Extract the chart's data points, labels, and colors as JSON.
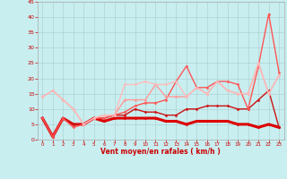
{
  "xlabel": "Vent moyen/en rafales ( km/h )",
  "bg_color": "#c8eef0",
  "grid_color": "#aacccc",
  "xlim": [
    -0.5,
    23.5
  ],
  "ylim": [
    0,
    45
  ],
  "yticks": [
    0,
    5,
    10,
    15,
    20,
    25,
    30,
    35,
    40,
    45
  ],
  "xticks": [
    0,
    1,
    2,
    3,
    4,
    5,
    6,
    7,
    8,
    9,
    10,
    11,
    12,
    13,
    14,
    15,
    16,
    17,
    18,
    19,
    20,
    21,
    22,
    23
  ],
  "series": [
    {
      "color": "#dd0000",
      "linewidth": 2.2,
      "marker": "D",
      "markersize": 1.5,
      "alpha": 1.0,
      "values": [
        7,
        1,
        7,
        5,
        5,
        7,
        6,
        7,
        7,
        7,
        7,
        7,
        6,
        6,
        5,
        6,
        6,
        6,
        6,
        5,
        5,
        4,
        5,
        4
      ]
    },
    {
      "color": "#cc1111",
      "linewidth": 1.0,
      "marker": "D",
      "markersize": 1.5,
      "alpha": 1.0,
      "values": [
        7,
        1,
        7,
        5,
        5,
        7,
        7,
        8,
        8,
        10,
        9,
        9,
        8,
        8,
        10,
        10,
        11,
        11,
        11,
        10,
        10,
        13,
        16,
        4
      ]
    },
    {
      "color": "#ff5555",
      "linewidth": 1.0,
      "marker": "D",
      "markersize": 1.5,
      "alpha": 1.0,
      "values": [
        7,
        1,
        7,
        4,
        5,
        7,
        7,
        8,
        9,
        11,
        12,
        12,
        13,
        19,
        24,
        17,
        17,
        19,
        19,
        18,
        10,
        24,
        41,
        22
      ]
    },
    {
      "color": "#ff9999",
      "linewidth": 1.0,
      "marker": "D",
      "markersize": 1.5,
      "alpha": 1.0,
      "values": [
        14,
        16,
        13,
        10,
        5,
        7,
        8,
        8,
        13,
        13,
        13,
        18,
        14,
        14,
        14,
        17,
        15,
        19,
        16,
        15,
        15,
        25,
        15,
        21
      ]
    },
    {
      "color": "#ffbbbb",
      "linewidth": 1.0,
      "marker": "D",
      "markersize": 1.5,
      "alpha": 1.0,
      "values": [
        14,
        16,
        13,
        10,
        5,
        7,
        8,
        8,
        18,
        18,
        19,
        18,
        18,
        19,
        14,
        17,
        15,
        19,
        16,
        15,
        15,
        25,
        15,
        21
      ]
    }
  ]
}
